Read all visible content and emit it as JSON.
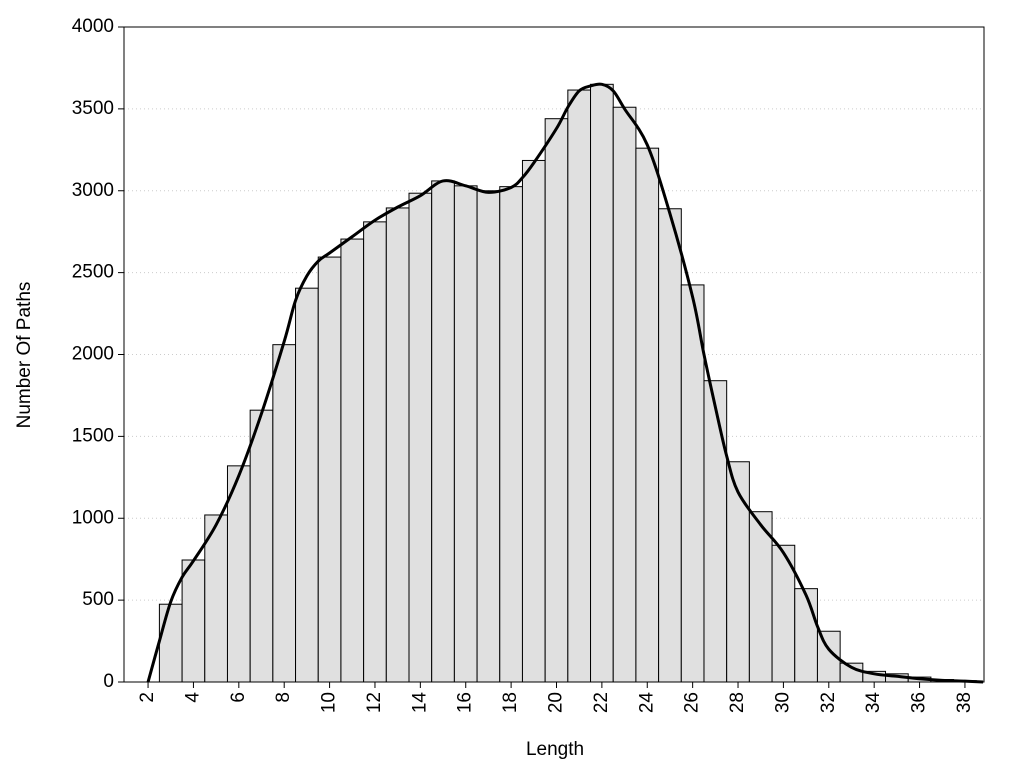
{
  "chart_data": {
    "type": "histogram",
    "xlabel": "Length",
    "ylabel": "Number Of Paths",
    "bins": [
      2.5,
      3.5,
      4.5,
      5.5,
      6.5,
      7.5,
      8.5,
      9.5,
      10.5,
      11.5,
      12.5,
      13.5,
      14.5,
      15.5,
      16.5,
      17.5,
      18.5,
      19.5,
      20.5,
      21.5,
      22.5,
      23.5,
      24.5,
      25.5,
      26.5,
      27.5,
      28.5,
      29.5,
      30.5,
      31.5,
      32.5,
      33.5,
      34.5,
      35.5,
      36.5,
      37.5,
      38.5
    ],
    "values": [
      475,
      745,
      1020,
      1320,
      1660,
      2060,
      2405,
      2595,
      2705,
      2810,
      2895,
      2985,
      3060,
      3030,
      3000,
      3025,
      3185,
      3440,
      3615,
      3650,
      3510,
      3260,
      2890,
      2425,
      1840,
      1345,
      1040,
      835,
      570,
      310,
      115,
      65,
      50,
      30,
      15,
      8
    ],
    "color": "#e0e0e0",
    "curve": {
      "type": "line",
      "color": "#000000",
      "x": [
        2,
        2.5,
        3,
        3.5,
        4,
        5,
        6,
        7,
        8,
        8.5,
        9,
        9.5,
        10,
        11,
        12,
        13,
        14,
        15,
        16,
        17,
        18,
        18.5,
        19,
        20,
        20.5,
        21,
        21.5,
        22,
        22.5,
        23,
        24,
        25,
        26,
        26.5,
        27,
        27.5,
        28,
        29,
        30,
        31,
        31.5,
        32,
        33,
        34,
        35,
        36,
        37,
        38,
        38.8
      ],
      "values": [
        0,
        250,
        490,
        640,
        740,
        960,
        1260,
        1640,
        2080,
        2330,
        2480,
        2570,
        2620,
        2720,
        2820,
        2900,
        2970,
        3060,
        3030,
        2990,
        3020,
        3080,
        3170,
        3380,
        3510,
        3610,
        3640,
        3650,
        3610,
        3500,
        3280,
        2860,
        2350,
        2000,
        1680,
        1380,
        1160,
        960,
        790,
        530,
        340,
        200,
        90,
        50,
        35,
        20,
        10,
        5,
        0
      ]
    },
    "xlim": [
      0.94,
      38.84
    ],
    "ylim": [
      0,
      4000
    ],
    "xticks": [
      2,
      4,
      6,
      8,
      10,
      12,
      14,
      16,
      18,
      20,
      22,
      24,
      26,
      28,
      30,
      32,
      34,
      36,
      38
    ],
    "yticks": [
      0,
      500,
      1000,
      1500,
      2000,
      2500,
      3000,
      3500,
      4000
    ],
    "grid": true
  }
}
